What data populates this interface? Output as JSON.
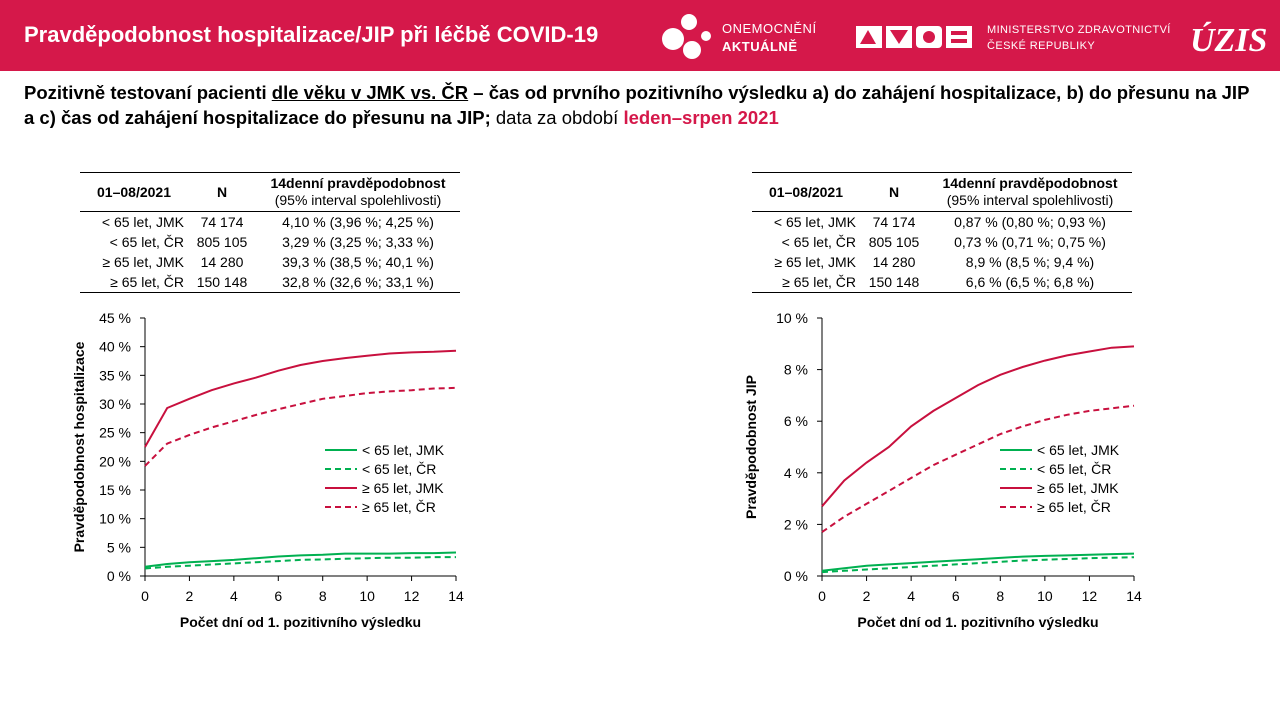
{
  "header": {
    "title": "Pravděpodobnost hospitalizace/JIP při léčbě COVID-19",
    "logo1_line1": "ONEMOCNĚNÍ",
    "logo1_line2": "AKTUÁLNĚ",
    "logo2_line1": "MINISTERSTVO ZDRAVOTNICTVÍ",
    "logo2_line2": "ČESKÉ REPUBLIKY",
    "logo3": "ÚZIS"
  },
  "subtitle": {
    "p1": "Pozitivně testovaní pacienti ",
    "p2": "dle věku v JMK vs. ČR",
    "p3": " – čas od prvního pozitivního výsledku a) do zahájení hospitalizace, b) do přesunu na JIP a c) čas od zahájení hospitalizace do přesunu na JIP;",
    "p4": " data za období ",
    "p5": "leden–srpen 2021"
  },
  "colors": {
    "brand": "#d5184a",
    "green": "#00b050",
    "red": "#c8103e"
  },
  "tables": [
    {
      "h_period": "01–08/2021",
      "h_n": "N",
      "h_prob": "14denní pravděpodobnost",
      "h_prob_sub": "(95% interval spolehlivosti)",
      "rows": [
        {
          "group": "< 65 let, JMK",
          "n": "74 174",
          "prob": "4,10 % (3,96 %; 4,25 %)"
        },
        {
          "group": "< 65 let, ČR",
          "n": "805 105",
          "prob": "3,29 % (3,25 %; 3,33 %)"
        },
        {
          "group": "≥ 65 let, JMK",
          "n": "14 280",
          "prob": "39,3 % (38,5 %; 40,1 %)"
        },
        {
          "group": "≥ 65 let, ČR",
          "n": "150 148",
          "prob": "32,8 % (32,6 %; 33,1 %)"
        }
      ]
    },
    {
      "h_period": "01–08/2021",
      "h_n": "N",
      "h_prob": "14denní pravděpodobnost",
      "h_prob_sub": "(95% interval spolehlivosti)",
      "rows": [
        {
          "group": "< 65 let, JMK",
          "n": "74 174",
          "prob": "0,87 % (0,80 %; 0,93 %)"
        },
        {
          "group": "< 65 let, ČR",
          "n": "805 105",
          "prob": "0,73 % (0,71 %; 0,75 %)"
        },
        {
          "group": "≥ 65 let, JMK",
          "n": "14 280",
          "prob": "8,9 % (8,5 %; 9,4 %)"
        },
        {
          "group": "≥ 65 let, ČR",
          "n": "150 148",
          "prob": "6,6 % (6,5 %; 6,8 %)"
        }
      ]
    }
  ],
  "chart_data": [
    {
      "type": "line",
      "ylabel": "Pravděpodobnost hospitalizace",
      "xlabel": "Počet dní od 1. pozitivního výsledku",
      "xlim": [
        0,
        14
      ],
      "ylim": [
        0,
        45
      ],
      "xticks": [
        0,
        2,
        4,
        6,
        8,
        10,
        12,
        14
      ],
      "xtick_labels": [
        "0",
        "2",
        "4",
        "6",
        "8",
        "10",
        "12",
        "14"
      ],
      "yticks": [
        0,
        5,
        10,
        15,
        20,
        25,
        30,
        35,
        40,
        45
      ],
      "ytick_labels": [
        "0 %",
        "5 %",
        "10 %",
        "15 %",
        "20 %",
        "25 %",
        "30 %",
        "35 %",
        "40 %",
        "45 %"
      ],
      "legend_position": "right",
      "x": [
        0,
        1,
        2,
        3,
        4,
        5,
        6,
        7,
        8,
        9,
        10,
        11,
        12,
        13,
        14
      ],
      "series": [
        {
          "name": "< 65 let, JMK",
          "color": "#00b050",
          "dash": false,
          "values": [
            1.6,
            2.1,
            2.4,
            2.6,
            2.8,
            3.1,
            3.4,
            3.6,
            3.7,
            3.9,
            3.9,
            3.9,
            4.0,
            4.0,
            4.1
          ]
        },
        {
          "name": "< 65 let, ČR",
          "color": "#00b050",
          "dash": true,
          "values": [
            1.3,
            1.6,
            1.8,
            2.0,
            2.2,
            2.4,
            2.6,
            2.8,
            2.9,
            3.0,
            3.1,
            3.2,
            3.2,
            3.3,
            3.3
          ]
        },
        {
          "name": "≥ 65 let, JMK",
          "color": "#c8103e",
          "dash": false,
          "values": [
            22.5,
            29.3,
            30.9,
            32.4,
            33.6,
            34.6,
            35.8,
            36.8,
            37.5,
            38.0,
            38.4,
            38.8,
            39.0,
            39.1,
            39.3
          ]
        },
        {
          "name": "≥ 65 let, ČR",
          "color": "#c8103e",
          "dash": true,
          "values": [
            19.2,
            23.1,
            24.6,
            25.9,
            27.0,
            28.1,
            29.1,
            30.0,
            30.9,
            31.4,
            31.9,
            32.2,
            32.4,
            32.7,
            32.8
          ]
        }
      ]
    },
    {
      "type": "line",
      "ylabel": "Pravděpodobnost JIP",
      "xlabel": "Počet dní od 1. pozitivního výsledku",
      "xlim": [
        0,
        14
      ],
      "ylim": [
        0,
        10
      ],
      "xticks": [
        0,
        2,
        4,
        6,
        8,
        10,
        12,
        14
      ],
      "xtick_labels": [
        "0",
        "2",
        "4",
        "6",
        "8",
        "10",
        "12",
        "14"
      ],
      "yticks": [
        0,
        2,
        4,
        6,
        8,
        10
      ],
      "ytick_labels": [
        "0 %",
        "2 %",
        "4 %",
        "6 %",
        "8 %",
        "10 %"
      ],
      "legend_position": "right",
      "x": [
        0,
        1,
        2,
        3,
        4,
        5,
        6,
        7,
        8,
        9,
        10,
        11,
        12,
        13,
        14
      ],
      "series": [
        {
          "name": "< 65 let, JMK",
          "color": "#00b050",
          "dash": false,
          "values": [
            0.2,
            0.3,
            0.4,
            0.45,
            0.5,
            0.55,
            0.6,
            0.65,
            0.7,
            0.75,
            0.78,
            0.8,
            0.82,
            0.85,
            0.87
          ]
        },
        {
          "name": "< 65 let, ČR",
          "color": "#00b050",
          "dash": true,
          "values": [
            0.15,
            0.2,
            0.25,
            0.3,
            0.35,
            0.4,
            0.45,
            0.5,
            0.55,
            0.6,
            0.63,
            0.66,
            0.69,
            0.71,
            0.73
          ]
        },
        {
          "name": "≥ 65 let, JMK",
          "color": "#c8103e",
          "dash": false,
          "values": [
            2.7,
            3.7,
            4.4,
            5.0,
            5.8,
            6.4,
            6.9,
            7.4,
            7.8,
            8.1,
            8.35,
            8.55,
            8.7,
            8.85,
            8.9
          ]
        },
        {
          "name": "≥ 65 let, ČR",
          "color": "#c8103e",
          "dash": true,
          "values": [
            1.7,
            2.3,
            2.8,
            3.3,
            3.8,
            4.3,
            4.7,
            5.1,
            5.5,
            5.8,
            6.05,
            6.25,
            6.4,
            6.5,
            6.6
          ]
        }
      ]
    }
  ]
}
